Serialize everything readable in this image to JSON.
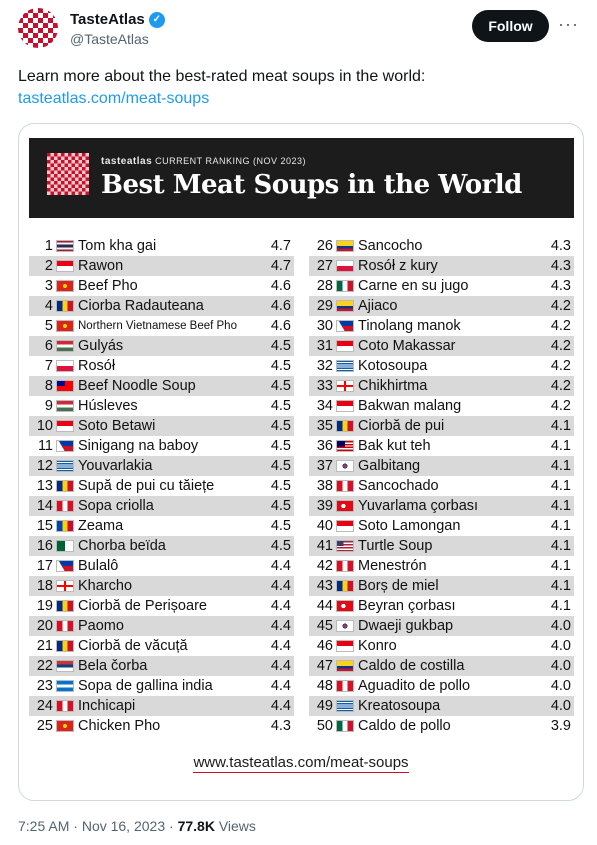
{
  "account": {
    "name": "TasteAtlas",
    "handle": "@TasteAtlas",
    "follow_label": "Follow",
    "more_label": "···"
  },
  "tweet": {
    "text": "Learn more about the best-rated meat soups in the world:",
    "link": "tasteatlas.com/meat-soups"
  },
  "image": {
    "brand": "tasteatlas",
    "subtitle": "CURRENT RANKING (NOV 2023)",
    "title": "Best Meat Soups in the World",
    "footer_url": "www.tasteatlas.com/meat-soups",
    "rows": [
      {
        "rank": "1",
        "flag": "Thailand",
        "dish": "Tom kha gai",
        "score": "4.7"
      },
      {
        "rank": "2",
        "flag": "Indonesia",
        "dish": "Rawon",
        "score": "4.7"
      },
      {
        "rank": "3",
        "flag": "Vietnam",
        "dish": "Beef Pho",
        "score": "4.6"
      },
      {
        "rank": "4",
        "flag": "Romania",
        "dish": "Ciorba Radauteana",
        "score": "4.6"
      },
      {
        "rank": "5",
        "flag": "Vietnam",
        "dish": "Northern Vietnamese Beef Pho",
        "score": "4.6"
      },
      {
        "rank": "6",
        "flag": "Hungary",
        "dish": "Gulyás",
        "score": "4.5"
      },
      {
        "rank": "7",
        "flag": "Poland",
        "dish": "Rosół",
        "score": "4.5"
      },
      {
        "rank": "8",
        "flag": "Taiwan",
        "dish": "Beef Noodle Soup",
        "score": "4.5"
      },
      {
        "rank": "9",
        "flag": "Hungary",
        "dish": "Húsleves",
        "score": "4.5"
      },
      {
        "rank": "10",
        "flag": "Indonesia",
        "dish": "Soto Betawi",
        "score": "4.5"
      },
      {
        "rank": "11",
        "flag": "Philippines",
        "dish": "Sinigang na baboy",
        "score": "4.5"
      },
      {
        "rank": "12",
        "flag": "Greece",
        "dish": "Youvarlakia",
        "score": "4.5"
      },
      {
        "rank": "13",
        "flag": "Romania",
        "dish": "Supă de pui cu tăiețe",
        "score": "4.5"
      },
      {
        "rank": "14",
        "flag": "Peru",
        "dish": "Sopa criolla",
        "score": "4.5"
      },
      {
        "rank": "15",
        "flag": "Moldova",
        "dish": "Zeama",
        "score": "4.5"
      },
      {
        "rank": "16",
        "flag": "Algeria",
        "dish": "Chorba beïda",
        "score": "4.5"
      },
      {
        "rank": "17",
        "flag": "Philippines",
        "dish": "Bulalô",
        "score": "4.4"
      },
      {
        "rank": "18",
        "flag": "Georgia",
        "dish": "Kharcho",
        "score": "4.4"
      },
      {
        "rank": "19",
        "flag": "Romania",
        "dish": "Ciorbă de Perișoare",
        "score": "4.4"
      },
      {
        "rank": "20",
        "flag": "Peru",
        "dish": "Paomo",
        "score": "4.4"
      },
      {
        "rank": "21",
        "flag": "Romania",
        "dish": "Ciorbă de văcuță",
        "score": "4.4"
      },
      {
        "rank": "22",
        "flag": "Serbia",
        "dish": "Bela čorba",
        "score": "4.4"
      },
      {
        "rank": "23",
        "flag": "Honduras",
        "dish": "Sopa de gallina india",
        "score": "4.4"
      },
      {
        "rank": "24",
        "flag": "Peru",
        "dish": "Inchicapi",
        "score": "4.4"
      },
      {
        "rank": "25",
        "flag": "Vietnam",
        "dish": "Chicken Pho",
        "score": "4.3"
      },
      {
        "rank": "26",
        "flag": "Colombia",
        "dish": "Sancocho",
        "score": "4.3"
      },
      {
        "rank": "27",
        "flag": "Poland",
        "dish": "Rosół z kury",
        "score": "4.3"
      },
      {
        "rank": "28",
        "flag": "Mexico",
        "dish": "Carne en su jugo",
        "score": "4.3"
      },
      {
        "rank": "29",
        "flag": "Colombia",
        "dish": "Ajiaco",
        "score": "4.2"
      },
      {
        "rank": "30",
        "flag": "Philippines",
        "dish": "Tinolang manok",
        "score": "4.2"
      },
      {
        "rank": "31",
        "flag": "Indonesia",
        "dish": "Coto Makassar",
        "score": "4.2"
      },
      {
        "rank": "32",
        "flag": "Greece",
        "dish": "Kotosoupa",
        "score": "4.2"
      },
      {
        "rank": "33",
        "flag": "Georgia",
        "dish": "Chikhirtma",
        "score": "4.2"
      },
      {
        "rank": "34",
        "flag": "Indonesia",
        "dish": "Bakwan malang",
        "score": "4.2"
      },
      {
        "rank": "35",
        "flag": "Romania",
        "dish": "Ciorbă de pui",
        "score": "4.1"
      },
      {
        "rank": "36",
        "flag": "Malaysia",
        "dish": "Bak kut teh",
        "score": "4.1"
      },
      {
        "rank": "37",
        "flag": "South Korea",
        "dish": "Galbitang",
        "score": "4.1"
      },
      {
        "rank": "38",
        "flag": "Peru",
        "dish": "Sancochado",
        "score": "4.1"
      },
      {
        "rank": "39",
        "flag": "Turkey",
        "dish": "Yuvarlama çorbası",
        "score": "4.1"
      },
      {
        "rank": "40",
        "flag": "Indonesia",
        "dish": "Soto Lamongan",
        "score": "4.1"
      },
      {
        "rank": "41",
        "flag": "USA",
        "dish": "Turtle Soup",
        "score": "4.1"
      },
      {
        "rank": "42",
        "flag": "Peru",
        "dish": "Menestrón",
        "score": "4.1"
      },
      {
        "rank": "43",
        "flag": "Romania",
        "dish": "Borș de miel",
        "score": "4.1"
      },
      {
        "rank": "44",
        "flag": "Turkey",
        "dish": "Beyran çorbası",
        "score": "4.1"
      },
      {
        "rank": "45",
        "flag": "South Korea",
        "dish": "Dwaeji gukbap",
        "score": "4.0"
      },
      {
        "rank": "46",
        "flag": "Indonesia",
        "dish": "Konro",
        "score": "4.0"
      },
      {
        "rank": "47",
        "flag": "Colombia",
        "dish": "Caldo de costilla",
        "score": "4.0"
      },
      {
        "rank": "48",
        "flag": "Peru",
        "dish": "Aguadito de pollo",
        "score": "4.0"
      },
      {
        "rank": "49",
        "flag": "Greece",
        "dish": "Kreatosoupa",
        "score": "4.0"
      },
      {
        "rank": "50",
        "flag": "Mexico",
        "dish": "Caldo de pollo",
        "score": "3.9"
      }
    ]
  },
  "meta": {
    "time": "7:25 AM",
    "sep": "·",
    "date": "Nov 16, 2023",
    "views_count": "77.8K",
    "views_label": "Views"
  },
  "colors": {
    "follow_bg": "#0f1419",
    "link": "#1d9bf0",
    "banner_bg": "#1c1c1c",
    "row_alt": "#d9d9d9"
  }
}
